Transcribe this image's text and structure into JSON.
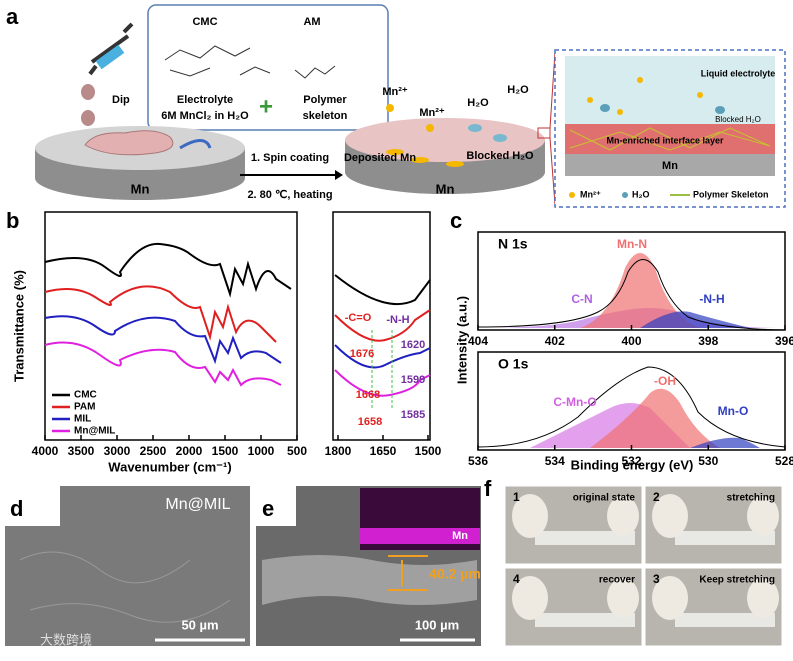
{
  "panel_a": {
    "label": "a",
    "box_title_left": "CMC",
    "box_title_right": "AM",
    "dip": "Dip",
    "electrolyte": "Electrolyte",
    "electrolyte_detail": "6M MnCl₂ in H₂O",
    "plus": "+",
    "polymer": "Polymer",
    "skeleton": "skeleton",
    "step1": "1. Spin coating",
    "step2": "2. 80 ℃, heating",
    "substrate_left": "Mn",
    "substrate_mid": "Mn",
    "ion1": "Mn²⁺",
    "ion2": "Mn²⁺",
    "water1": "H₂O",
    "water2": "H₂O",
    "deposited": "Deposited Mn",
    "blocked": "Blocked H₂O",
    "inset": {
      "liquid": "Liquid electrolyte",
      "blocked": "Blocked H₂O",
      "layer": "Mn-enriched interface layer",
      "substrate": "Mn",
      "legend": [
        "Mn²⁺",
        "H₂O",
        "Polymer Skeleton"
      ]
    }
  },
  "panel_b": {
    "label": "b",
    "y_label": "Transmittance (%)",
    "x_label": "Wavenumber (cm⁻¹)",
    "xticks": [
      4000,
      3500,
      3000,
      2500,
      2000,
      1500,
      1000,
      500
    ],
    "zoom_xticks": [
      1800,
      1650,
      1500
    ],
    "legend": [
      "CMC",
      "PAM",
      "MIL",
      "Mn@MIL"
    ],
    "annotations": [
      "-C=O",
      "-N-H",
      "1676",
      "1620",
      "1668",
      "1599",
      "1658",
      "1585"
    ]
  },
  "panel_c": {
    "label": "c",
    "y_label": "Intensity (a.u.)",
    "x_label": "Binding energy (eV)",
    "n1s": {
      "title": "N 1s",
      "xticks": [
        404,
        402,
        400,
        398,
        396
      ],
      "peaks": [
        "Mn-N",
        "C-N",
        "-N-H"
      ]
    },
    "o1s": {
      "title": "O 1s",
      "xticks": [
        536,
        534,
        532,
        530,
        528
      ],
      "peaks": [
        "-OH",
        "C-Mn-O",
        "Mn-O"
      ]
    }
  },
  "panel_d": {
    "label": "d",
    "sample": "Mn@MIL",
    "scale": "50 µm"
  },
  "panel_e": {
    "label": "e",
    "element": "Mn",
    "thickness": "40.2 µm",
    "scale": "100 µm"
  },
  "panel_f": {
    "label": "f",
    "photos": [
      {
        "index": "1",
        "caption": "original state"
      },
      {
        "index": "2",
        "caption": "stretching"
      },
      {
        "index": "4",
        "caption": "recover"
      },
      {
        "index": "3",
        "caption": "Keep stretching"
      }
    ]
  },
  "watermark": "大数跨境"
}
